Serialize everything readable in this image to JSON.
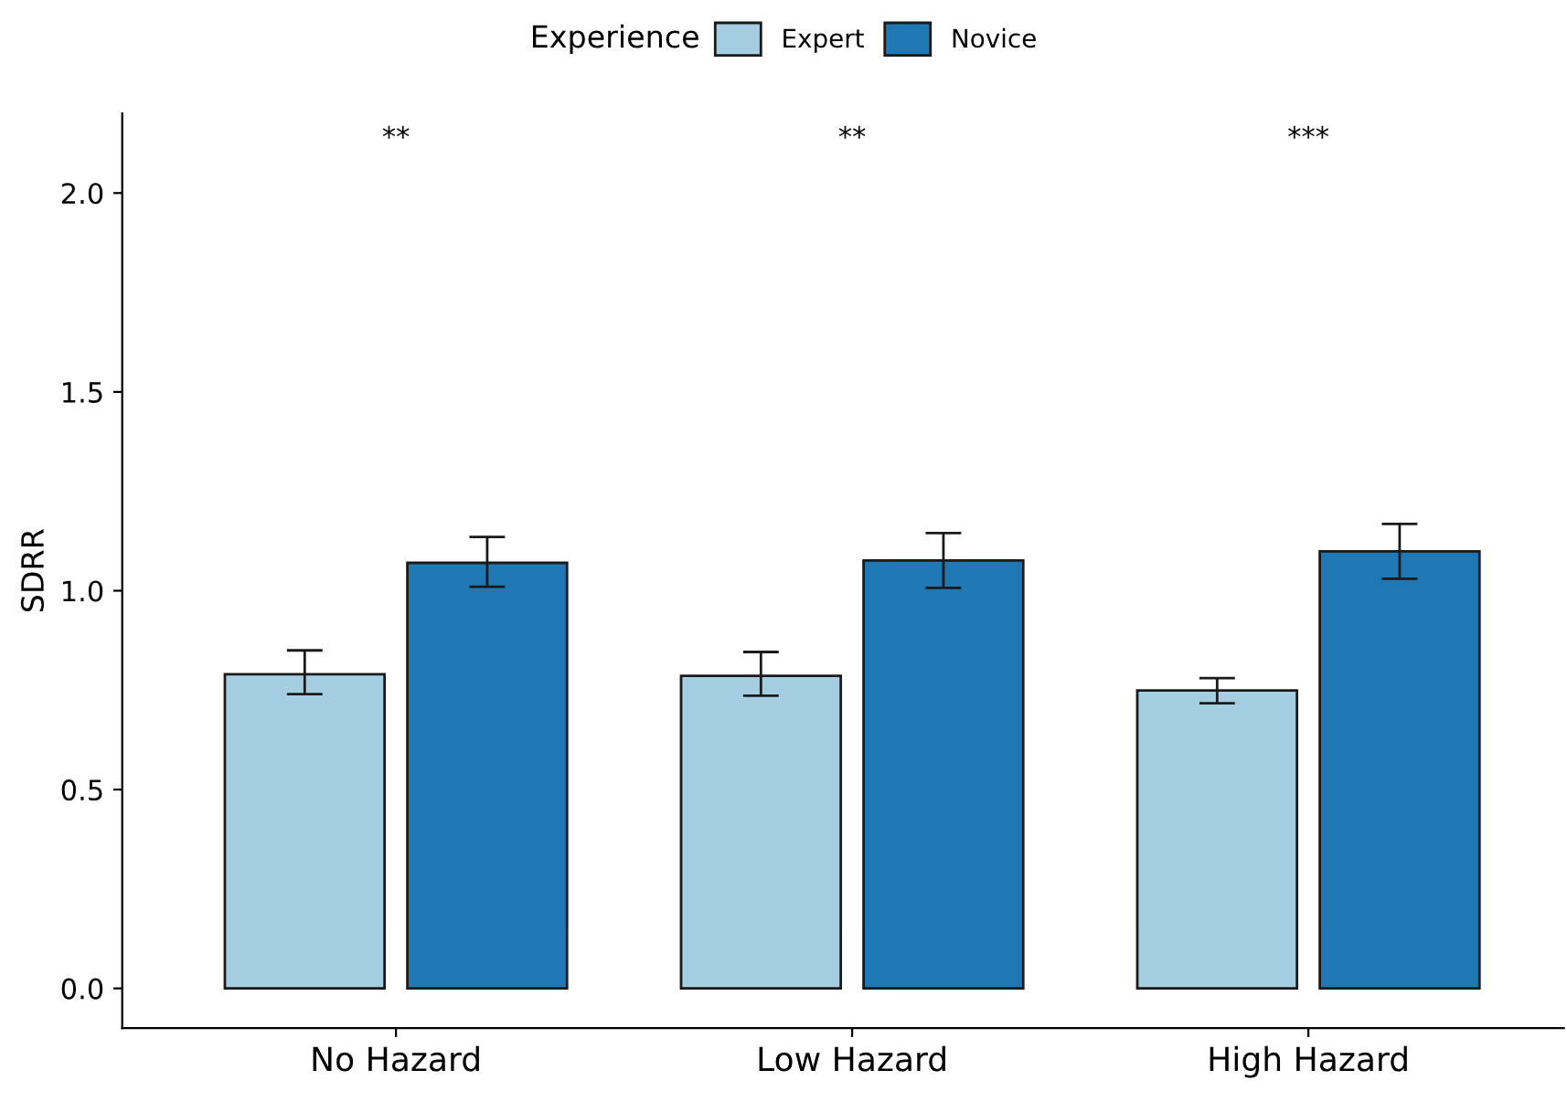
{
  "chart_data": {
    "type": "bar",
    "ylabel": "SDRR",
    "legend_title": "Experience",
    "legend": "top",
    "categories": [
      "No Hazard",
      "Low Hazard",
      "High Hazard"
    ],
    "series": [
      {
        "name": "Expert",
        "color": "#a6cee3",
        "values": [
          0.79,
          0.786,
          0.749
        ],
        "errors": [
          [
            0.74,
            0.85
          ],
          [
            0.736,
            0.846
          ],
          [
            0.717,
            0.78
          ]
        ]
      },
      {
        "name": "Novice",
        "color": "#1f78b4",
        "values": [
          1.07,
          1.076,
          1.099
        ],
        "errors": [
          [
            1.01,
            1.135
          ],
          [
            1.007,
            1.145
          ],
          [
            1.03,
            1.168
          ]
        ]
      }
    ],
    "ylim": [
      -0.1,
      2.2
    ],
    "yticks": [
      {
        "value": 0,
        "label": "0.0"
      },
      0.5,
      {
        "value": 1,
        "label": "1.0"
      },
      1.5,
      {
        "value": 2,
        "label": "2.0"
      }
    ],
    "grid": false,
    "annotations": [
      "**",
      "**",
      "***"
    ]
  }
}
